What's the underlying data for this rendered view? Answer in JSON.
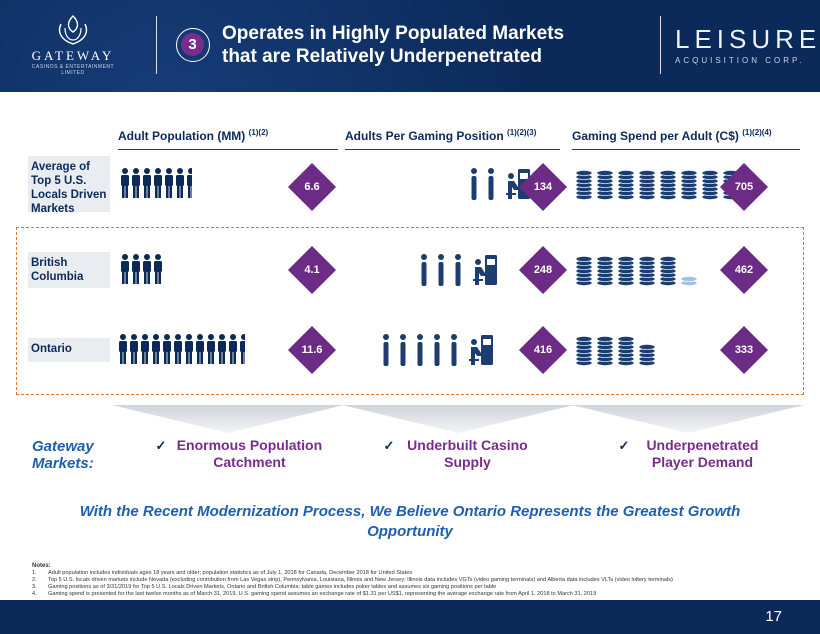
{
  "header": {
    "slide_number": "3",
    "title_line1": "Operates in Highly Populated Markets",
    "title_line2": "that are Relatively Underpenetrated",
    "left_logo": {
      "name": "GATEWAY",
      "subtitle": "CASINOS & ENTERTAINMENT LIMITED"
    },
    "right_logo": {
      "name": "LEISURE",
      "subtitle": "ACQUISITION CORP."
    }
  },
  "columns": [
    {
      "label": "Adult Population (MM)",
      "note": "(1)(2)"
    },
    {
      "label": "Adults Per Gaming Position",
      "note": "(1)(2)(3)"
    },
    {
      "label": "Gaming Spend per Adult (C$)",
      "note": "(1)(2)(4)"
    }
  ],
  "rows": [
    {
      "label": "Average of Top 5 U.S. Locals Driven Markets",
      "population": "6.6",
      "adults_per_position": "134",
      "spend": "705",
      "population_value": 6.6,
      "adults_per_position_value": 134,
      "spend_value": 705
    },
    {
      "label": "British Columbia",
      "population": "4.1",
      "adults_per_position": "248",
      "spend": "462",
      "population_value": 4.1,
      "adults_per_position_value": 248,
      "spend_value": 462
    },
    {
      "label": "Ontario",
      "population": "11.6",
      "adults_per_position": "416",
      "spend": "333",
      "population_value": 11.6,
      "adults_per_position_value": 416,
      "spend_value": 333
    }
  ],
  "gateway_markets": "Gateway Markets:",
  "benefits": [
    "Enormous Population Catchment",
    "Underbuilt Casino Supply",
    "Underpenetrated Player Demand"
  ],
  "tagline": "With the Recent Modernization Process, We Believe Ontario Represents the Greatest Growth Opportunity",
  "notes": {
    "heading": "Notes:",
    "items": [
      {
        "n": "1.",
        "text": "Adult population includes individuals ages 18 years and older; population statistics as of July 1, 2018 for Canada, December 2018 for United States"
      },
      {
        "n": "2.",
        "text": "Top 5 U.S. locals driven markets include Nevada (excluding contribution from Las Vegas strip), Pennsylvania, Louisiana, Illinois and New Jersey; Illinois data includes VGTs (video gaming terminals) and Alberta data includes VLTs (video lottery terminals)"
      },
      {
        "n": "3.",
        "text": "Gaming positions as of 3/31/2019 for Top 5 U.S. Locals Driven Markets, Ontario and British Columbia; table games includes poker tables and assumes six gaming positions per table"
      },
      {
        "n": "4.",
        "text": "Gaming spend is presented for the last twelve months as of March 31, 2019. U.S. gaming spend assumes an exchange rate of $1.31 per US$1, representing the average exchange rate from April 1, 2018 to March 31, 2019"
      }
    ]
  },
  "page_number": "17",
  "colors": {
    "navy": "#0b2a5a",
    "purple": "#6c2c85",
    "accent_blue": "#1e5fb0",
    "dashed_border": "#e0742a"
  }
}
